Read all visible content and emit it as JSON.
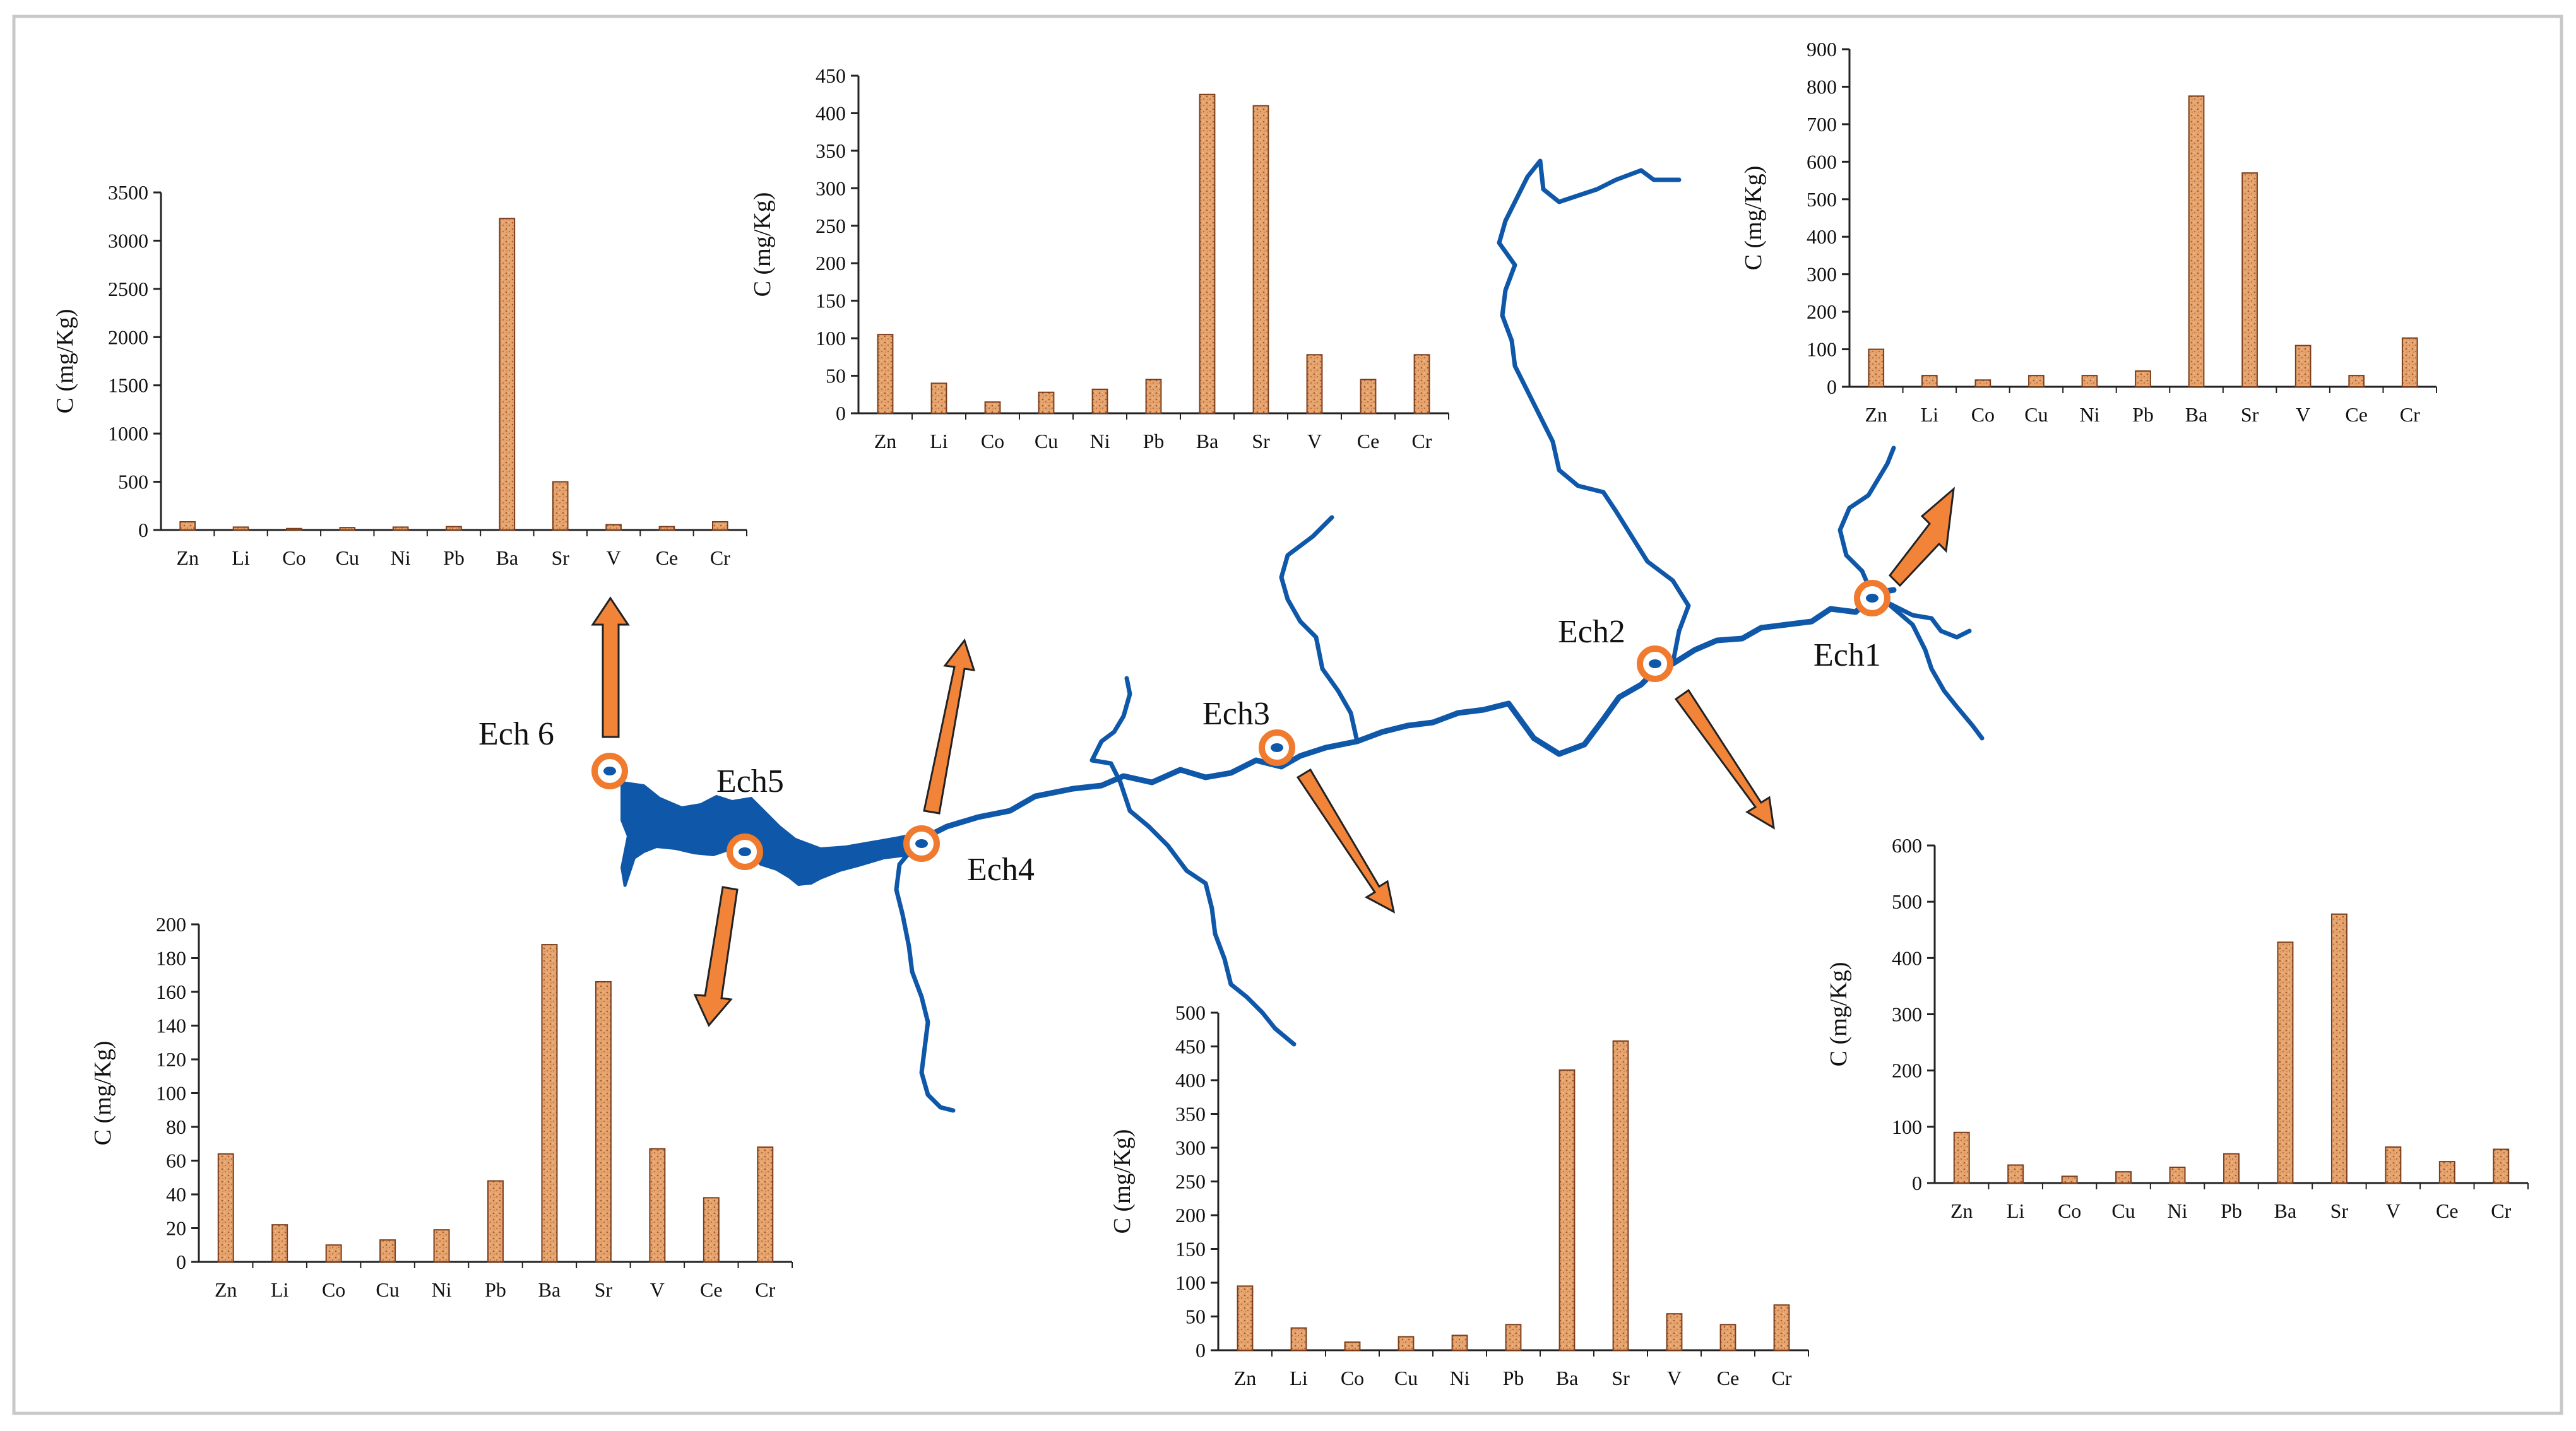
{
  "colors": {
    "bar_fill": "#e3a06a",
    "bar_stroke": "#7a3d1c",
    "river": "#0f57a8",
    "arrow": "#f2843a",
    "marker": "#f07a2e"
  },
  "sites": [
    {
      "id": "ech6",
      "label": "Ech 6"
    },
    {
      "id": "ech5",
      "label": "Ech5"
    },
    {
      "id": "ech4",
      "label": "Ech4"
    },
    {
      "id": "ech3",
      "label": "Ech3"
    },
    {
      "id": "ech2",
      "label": "Ech2"
    },
    {
      "id": "ech1",
      "label": "Ech1"
    }
  ],
  "chart_data": [
    {
      "type": "bar",
      "site": "Ech 6",
      "ylabel": "C (mg/Kg)",
      "categories": [
        "Zn",
        "Li",
        "Co",
        "Cu",
        "Ni",
        "Pb",
        "Ba",
        "Sr",
        "V",
        "Ce",
        "Cr"
      ],
      "values": [
        85,
        30,
        15,
        25,
        30,
        35,
        3230,
        500,
        55,
        35,
        85
      ],
      "ylim": [
        0,
        3500
      ],
      "yticks": [
        "0",
        "500",
        "1000",
        "1500",
        "2000",
        "2500",
        "3000",
        "3500"
      ]
    },
    {
      "type": "bar",
      "site": "Ech4",
      "ylabel": "C (mg/Kg)",
      "categories": [
        "Zn",
        "Li",
        "Co",
        "Cu",
        "Ni",
        "Pb",
        "Ba",
        "Sr",
        "V",
        "Ce",
        "Cr"
      ],
      "values": [
        105,
        40,
        15,
        28,
        32,
        45,
        425,
        410,
        78,
        45,
        78
      ],
      "ylim": [
        0,
        450
      ],
      "yticks": [
        "0",
        "50",
        "100",
        "150",
        "200",
        "250",
        "300",
        "350",
        "400",
        "450"
      ]
    },
    {
      "type": "bar",
      "site": "Ech1",
      "ylabel": "C (mg/Kg)",
      "categories": [
        "Zn",
        "Li",
        "Co",
        "Cu",
        "Ni",
        "Pb",
        "Ba",
        "Sr",
        "V",
        "Ce",
        "Cr"
      ],
      "values": [
        100,
        30,
        18,
        30,
        30,
        42,
        775,
        570,
        110,
        30,
        130
      ],
      "ylim": [
        0,
        900
      ],
      "yticks": [
        "0",
        "100",
        "200",
        "300",
        "400",
        "500",
        "600",
        "700",
        "800",
        "900"
      ]
    },
    {
      "type": "bar",
      "site": "Ech5",
      "ylabel": "C (mg/Kg)",
      "categories": [
        "Zn",
        "Li",
        "Co",
        "Cu",
        "Ni",
        "Pb",
        "Ba",
        "Sr",
        "V",
        "Ce",
        "Cr"
      ],
      "values": [
        64,
        22,
        10,
        13,
        19,
        48,
        188,
        166,
        67,
        38,
        68
      ],
      "ylim": [
        0,
        200
      ],
      "yticks": [
        "0",
        "20",
        "40",
        "60",
        "80",
        "100",
        "120",
        "140",
        "160",
        "180",
        "200"
      ]
    },
    {
      "type": "bar",
      "site": "Ech3",
      "ylabel": "C (mg/Kg)",
      "categories": [
        "Zn",
        "Li",
        "Co",
        "Cu",
        "Ni",
        "Pb",
        "Ba",
        "Sr",
        "V",
        "Ce",
        "Cr"
      ],
      "values": [
        95,
        33,
        12,
        20,
        22,
        38,
        415,
        458,
        54,
        38,
        67
      ],
      "ylim": [
        0,
        500
      ],
      "yticks": [
        "0",
        "50",
        "100",
        "150",
        "200",
        "250",
        "300",
        "350",
        "400",
        "450",
        "500"
      ]
    },
    {
      "type": "bar",
      "site": "Ech2",
      "ylabel": "C (mg/Kg)",
      "categories": [
        "Zn",
        "Li",
        "Co",
        "Cu",
        "Ni",
        "Pb",
        "Ba",
        "Sr",
        "V",
        "Ce",
        "Cr"
      ],
      "values": [
        90,
        32,
        12,
        20,
        28,
        52,
        428,
        478,
        64,
        38,
        60
      ],
      "ylim": [
        0,
        600
      ],
      "yticks": [
        "0",
        "100",
        "200",
        "300",
        "400",
        "500",
        "600"
      ]
    }
  ]
}
